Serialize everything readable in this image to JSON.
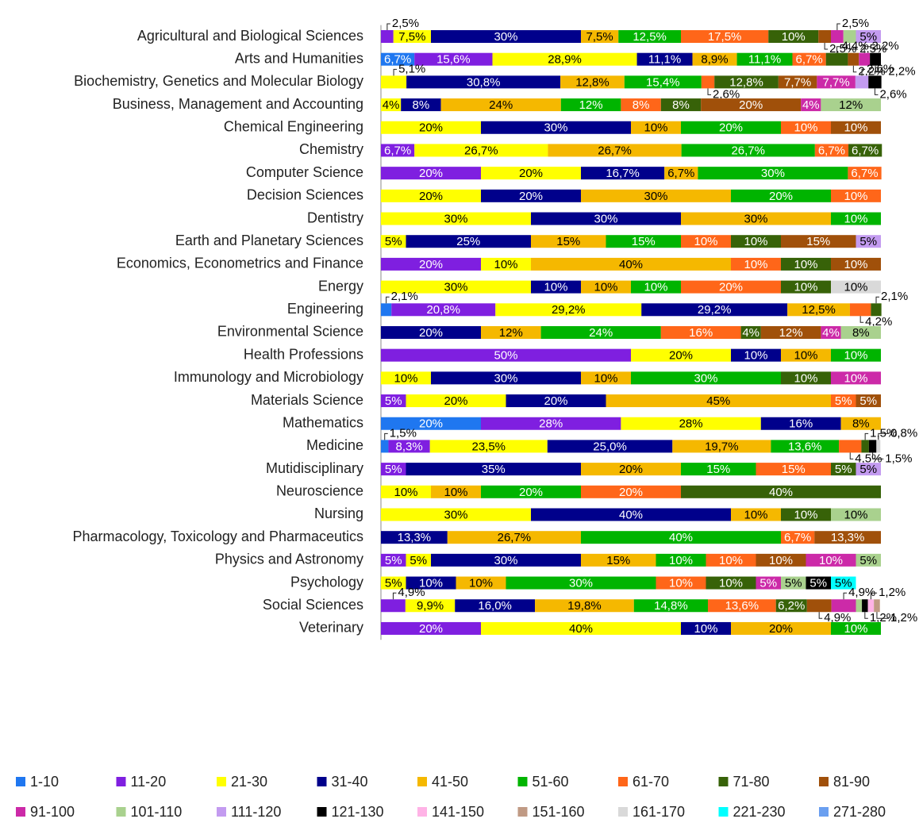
{
  "chart_data": {
    "type": "stacked_bar_horizontal",
    "categories": [
      "Agricultural and Biological Sciences",
      "Arts and Humanities",
      "Biochemistry, Genetics and Molecular Biology",
      "Business, Management and Accounting",
      "Chemical Engineering",
      "Chemistry",
      "Computer Science",
      "Decision Sciences",
      "Dentistry",
      "Earth and Planetary Sciences",
      "Economics, Econometrics and Finance",
      "Energy",
      "Engineering",
      "Environmental Science",
      "Health Professions",
      "Immunology and Microbiology",
      "Materials Science",
      "Mathematics",
      "Medicine",
      "Mutidisciplinary",
      "Neuroscience",
      "Nursing",
      "Pharmacology, Toxicology and Pharmaceutics",
      "Physics and Astronomy",
      "Psychology",
      "Social Sciences",
      "Veterinary"
    ],
    "legend": "bottom",
    "series": [
      {
        "name": "1-10",
        "color": "#1f77f0",
        "values": [
          null,
          6.7,
          null,
          null,
          null,
          null,
          null,
          null,
          null,
          null,
          null,
          null,
          2.1,
          null,
          null,
          null,
          null,
          20,
          1.5,
          null,
          null,
          null,
          null,
          null,
          null,
          null,
          null
        ],
        "value_labels": [
          null,
          "6,7%",
          null,
          null,
          null,
          null,
          null,
          null,
          null,
          null,
          null,
          null,
          "2,1%",
          null,
          null,
          null,
          null,
          "20%",
          "1,5%",
          null,
          null,
          null,
          null,
          null,
          null,
          null,
          null
        ]
      },
      {
        "name": "11-20",
        "color": "#7f1fe0",
        "values": [
          2.5,
          15.6,
          null,
          null,
          null,
          6.7,
          20,
          null,
          null,
          null,
          20,
          null,
          20.8,
          null,
          50,
          null,
          5,
          28,
          8.3,
          5,
          null,
          null,
          null,
          5,
          null,
          4.9,
          20
        ],
        "value_labels": [
          "2,5%",
          "15,6%",
          null,
          null,
          null,
          "6,7%",
          "20%",
          null,
          null,
          null,
          "20%",
          null,
          "20,8%",
          null,
          "50%",
          null,
          "5%",
          "28%",
          "8,3%",
          "5%",
          null,
          null,
          null,
          "5%",
          null,
          "4,9%",
          "20%"
        ]
      },
      {
        "name": "21-30",
        "color": "#ffff00",
        "values": [
          7.5,
          28.9,
          5.1,
          4,
          20,
          26.7,
          20,
          20,
          30,
          5,
          10,
          30,
          29.2,
          null,
          20,
          10,
          20,
          28,
          23.5,
          null,
          10,
          30,
          null,
          5,
          5,
          9.9,
          40
        ],
        "value_labels": [
          "7,5%",
          "28,9%",
          "5,1%",
          "4%",
          "20%",
          "26,7%",
          "20%",
          "20%",
          "30%",
          "5%",
          "10%",
          "30%",
          "29,2%",
          null,
          "20%",
          "10%",
          "20%",
          "28%",
          "23,5%",
          null,
          "10%",
          "30%",
          null,
          "5%",
          "5%",
          "9,9%",
          "40%"
        ]
      },
      {
        "name": "31-40",
        "color": "#00008b",
        "values": [
          30,
          11.1,
          30.8,
          8,
          30,
          null,
          16.7,
          20,
          30,
          25,
          null,
          10,
          29.2,
          20,
          10,
          30,
          20,
          16,
          25.0,
          35,
          null,
          40,
          13.3,
          30,
          10,
          16.0,
          10
        ],
        "value_labels": [
          "30%",
          "11,1%",
          "30,8%",
          "8%",
          "30%",
          null,
          "16,7%",
          "20%",
          "30%",
          "25%",
          null,
          "10%",
          "29,2%",
          "20%",
          "10%",
          "30%",
          "20%",
          "16%",
          "25,0%",
          "35%",
          null,
          "40%",
          "13,3%",
          "30%",
          "10%",
          "16,0%",
          "10%"
        ]
      },
      {
        "name": "41-50",
        "color": "#f5b800",
        "values": [
          7.5,
          8.9,
          12.8,
          24,
          10,
          26.7,
          6.7,
          30,
          30,
          15,
          40,
          10,
          12.5,
          12,
          10,
          10,
          45,
          8,
          19.7,
          20,
          10,
          10,
          26.7,
          15,
          10,
          19.8,
          20
        ],
        "value_labels": [
          "7,5%",
          "8,9%",
          "12,8%",
          "24%",
          "10%",
          "26,7%",
          "6,7%",
          "30%",
          "30%",
          "15%",
          "40%",
          "10%",
          "12,5%",
          "12%",
          "10%",
          "10%",
          "45%",
          "8%",
          "19,7%",
          "20%",
          "10%",
          "10%",
          "26,7%",
          "15%",
          "10%",
          "19,8%",
          "20%"
        ]
      },
      {
        "name": "51-60",
        "color": "#00b400",
        "values": [
          12.5,
          11.1,
          15.4,
          12,
          20,
          26.7,
          30,
          20,
          10,
          15,
          null,
          10,
          null,
          24,
          10,
          30,
          null,
          null,
          13.6,
          15,
          20,
          null,
          40,
          10,
          30,
          14.8,
          10
        ],
        "value_labels": [
          "12,5%",
          "11,1%",
          "15,4%",
          "12%",
          "20%",
          "26,7%",
          "30%",
          "20%",
          "10%",
          "15%",
          null,
          "10%",
          null,
          "24%",
          "10%",
          "30%",
          null,
          null,
          "13,6%",
          "15%",
          "20%",
          null,
          "40%",
          "10%",
          "30%",
          "14,8%",
          "10%"
        ]
      },
      {
        "name": "61-70",
        "color": "#ff6619",
        "values": [
          17.5,
          6.7,
          2.6,
          8,
          10,
          6.7,
          6.7,
          10,
          null,
          10,
          10,
          20,
          4.2,
          16,
          null,
          null,
          5,
          null,
          4.5,
          15,
          20,
          null,
          6.7,
          10,
          10,
          13.6,
          null
        ],
        "value_labels": [
          "17,5%",
          "6,7%",
          "2,6%",
          "8%",
          "10%",
          "6,7%",
          "6,7%",
          "10%",
          null,
          "10%",
          "10%",
          "20%",
          "4,2%",
          "16%",
          null,
          null,
          "5%",
          null,
          "4,5%",
          "15%",
          "20%",
          null,
          "6,7%",
          "10%",
          "10%",
          "13,6%",
          null
        ]
      },
      {
        "name": "71-80",
        "color": "#376208",
        "values": [
          10,
          4.4,
          12.8,
          8,
          null,
          6.7,
          null,
          null,
          null,
          10,
          10,
          10,
          2.1,
          4,
          null,
          10,
          null,
          null,
          1.5,
          5,
          40,
          10,
          null,
          null,
          10,
          6.2,
          null
        ],
        "value_labels": [
          "10%",
          "4,4%",
          "12,8%",
          "8%",
          null,
          "6,7%",
          null,
          null,
          null,
          "10%",
          "10%",
          "10%",
          "2,1%",
          "4%",
          null,
          "10%",
          null,
          null,
          "1,5%",
          "5%",
          "40%",
          "10%",
          null,
          null,
          "10%",
          "6,2%",
          null
        ]
      },
      {
        "name": "81-90",
        "color": "#a0500a",
        "values": [
          2.5,
          2.2,
          7.7,
          20,
          10,
          null,
          null,
          null,
          null,
          15,
          10,
          null,
          null,
          12,
          null,
          null,
          5,
          null,
          null,
          null,
          null,
          null,
          13.3,
          10,
          null,
          4.9,
          null
        ],
        "value_labels": [
          "2,5%",
          "2,2%",
          "7,7%",
          "20%",
          "10%",
          null,
          null,
          null,
          null,
          "15%",
          "10%",
          null,
          null,
          "12%",
          null,
          null,
          "5%",
          null,
          null,
          null,
          null,
          null,
          "13,3%",
          "10%",
          null,
          "4,9%",
          null
        ]
      },
      {
        "name": "91-100",
        "color": "#cc2aa8",
        "values": [
          2.5,
          2.2,
          7.7,
          4,
          null,
          null,
          null,
          null,
          null,
          null,
          null,
          null,
          null,
          4,
          null,
          10,
          null,
          null,
          null,
          null,
          null,
          null,
          null,
          10,
          5,
          4.9,
          null
        ],
        "value_labels": [
          "2,5%",
          "2,2%",
          "7,7%",
          "4%",
          null,
          null,
          null,
          null,
          null,
          null,
          null,
          null,
          null,
          "4%",
          null,
          "10%",
          null,
          null,
          null,
          null,
          null,
          null,
          null,
          "10%",
          "5%",
          "4,9%",
          null
        ]
      },
      {
        "name": "101-110",
        "color": "#a9d18e",
        "values": [
          2.5,
          null,
          null,
          12,
          null,
          null,
          null,
          null,
          null,
          null,
          null,
          null,
          null,
          8,
          null,
          null,
          null,
          null,
          null,
          null,
          null,
          10,
          null,
          5,
          5,
          1.2,
          null
        ],
        "value_labels": [
          "2,5%",
          null,
          null,
          "12%",
          null,
          null,
          null,
          null,
          null,
          null,
          null,
          null,
          null,
          "8%",
          null,
          null,
          null,
          null,
          null,
          null,
          null,
          "10%",
          null,
          "5%",
          "5%",
          null,
          null
        ]
      },
      {
        "name": "111-120",
        "color": "#c39bf0",
        "values": [
          5,
          null,
          2.6,
          null,
          null,
          null,
          null,
          null,
          null,
          5,
          null,
          null,
          null,
          null,
          null,
          null,
          null,
          null,
          null,
          5,
          null,
          null,
          null,
          null,
          null,
          null,
          null
        ],
        "value_labels": [
          "5%",
          null,
          "2,6%",
          null,
          null,
          null,
          null,
          null,
          null,
          "5%",
          null,
          null,
          null,
          null,
          null,
          null,
          null,
          null,
          null,
          "5%",
          null,
          null,
          null,
          null,
          null,
          null,
          null
        ]
      },
      {
        "name": "121-130",
        "color": "#000000",
        "values": [
          null,
          2.2,
          2.6,
          null,
          null,
          null,
          null,
          null,
          null,
          null,
          null,
          null,
          null,
          null,
          null,
          null,
          null,
          null,
          1.5,
          null,
          null,
          null,
          null,
          null,
          5,
          1.2,
          null
        ],
        "value_labels": [
          null,
          "2,2%",
          "2,6%",
          null,
          null,
          null,
          null,
          null,
          null,
          null,
          null,
          null,
          null,
          null,
          null,
          null,
          null,
          null,
          "1,5%",
          null,
          null,
          null,
          null,
          null,
          "5%",
          "1,2%",
          null
        ]
      },
      {
        "name": "141-150",
        "color": "#ffb3e6",
        "values": [
          null,
          null,
          null,
          null,
          null,
          null,
          null,
          null,
          null,
          null,
          null,
          null,
          null,
          null,
          null,
          null,
          null,
          null,
          null,
          null,
          null,
          null,
          null,
          null,
          null,
          1.2,
          null
        ],
        "value_labels": [
          null,
          null,
          null,
          null,
          null,
          null,
          null,
          null,
          null,
          null,
          null,
          null,
          null,
          null,
          null,
          null,
          null,
          null,
          null,
          null,
          null,
          null,
          null,
          null,
          null,
          "1,2%",
          null
        ]
      },
      {
        "name": "151-160",
        "color": "#c09a84",
        "values": [
          null,
          null,
          null,
          null,
          null,
          null,
          null,
          null,
          null,
          null,
          null,
          null,
          null,
          null,
          null,
          null,
          null,
          null,
          null,
          null,
          null,
          null,
          null,
          null,
          null,
          1.2,
          null
        ],
        "value_labels": [
          null,
          null,
          null,
          null,
          null,
          null,
          null,
          null,
          null,
          null,
          null,
          null,
          null,
          null,
          null,
          null,
          null,
          null,
          null,
          null,
          null,
          null,
          null,
          null,
          null,
          "1,2%",
          null
        ]
      },
      {
        "name": "161-170",
        "color": "#d9d9d9",
        "values": [
          null,
          null,
          null,
          null,
          null,
          null,
          null,
          null,
          null,
          null,
          null,
          10,
          null,
          null,
          null,
          null,
          null,
          null,
          0.8,
          null,
          null,
          null,
          null,
          null,
          null,
          null,
          null
        ],
        "value_labels": [
          null,
          null,
          null,
          null,
          null,
          null,
          null,
          null,
          null,
          null,
          null,
          "10%",
          null,
          null,
          null,
          null,
          null,
          null,
          "0,8%",
          null,
          null,
          null,
          null,
          null,
          null,
          null,
          null
        ]
      },
      {
        "name": "221-230",
        "color": "#00ffff",
        "values": [
          null,
          null,
          null,
          null,
          null,
          null,
          null,
          null,
          null,
          null,
          null,
          null,
          null,
          null,
          null,
          null,
          null,
          null,
          null,
          null,
          null,
          null,
          null,
          null,
          5,
          null,
          null
        ],
        "value_labels": [
          null,
          null,
          null,
          null,
          null,
          null,
          null,
          null,
          null,
          null,
          null,
          null,
          null,
          null,
          null,
          null,
          null,
          null,
          null,
          null,
          null,
          null,
          null,
          null,
          "5%",
          null,
          null
        ]
      },
      {
        "name": "271-280",
        "color": "#6a9ff0",
        "values": [
          null,
          null,
          null,
          null,
          null,
          null,
          null,
          null,
          null,
          null,
          null,
          null,
          null,
          null,
          null,
          null,
          null,
          null,
          null,
          null,
          null,
          null,
          null,
          null,
          null,
          null,
          null
        ],
        "value_labels": [
          null,
          null,
          null,
          null,
          null,
          null,
          null,
          null,
          null,
          null,
          null,
          null,
          null,
          null,
          null,
          null,
          null,
          null,
          null,
          null,
          null,
          null,
          null,
          null,
          null,
          null,
          null
        ]
      }
    ]
  }
}
